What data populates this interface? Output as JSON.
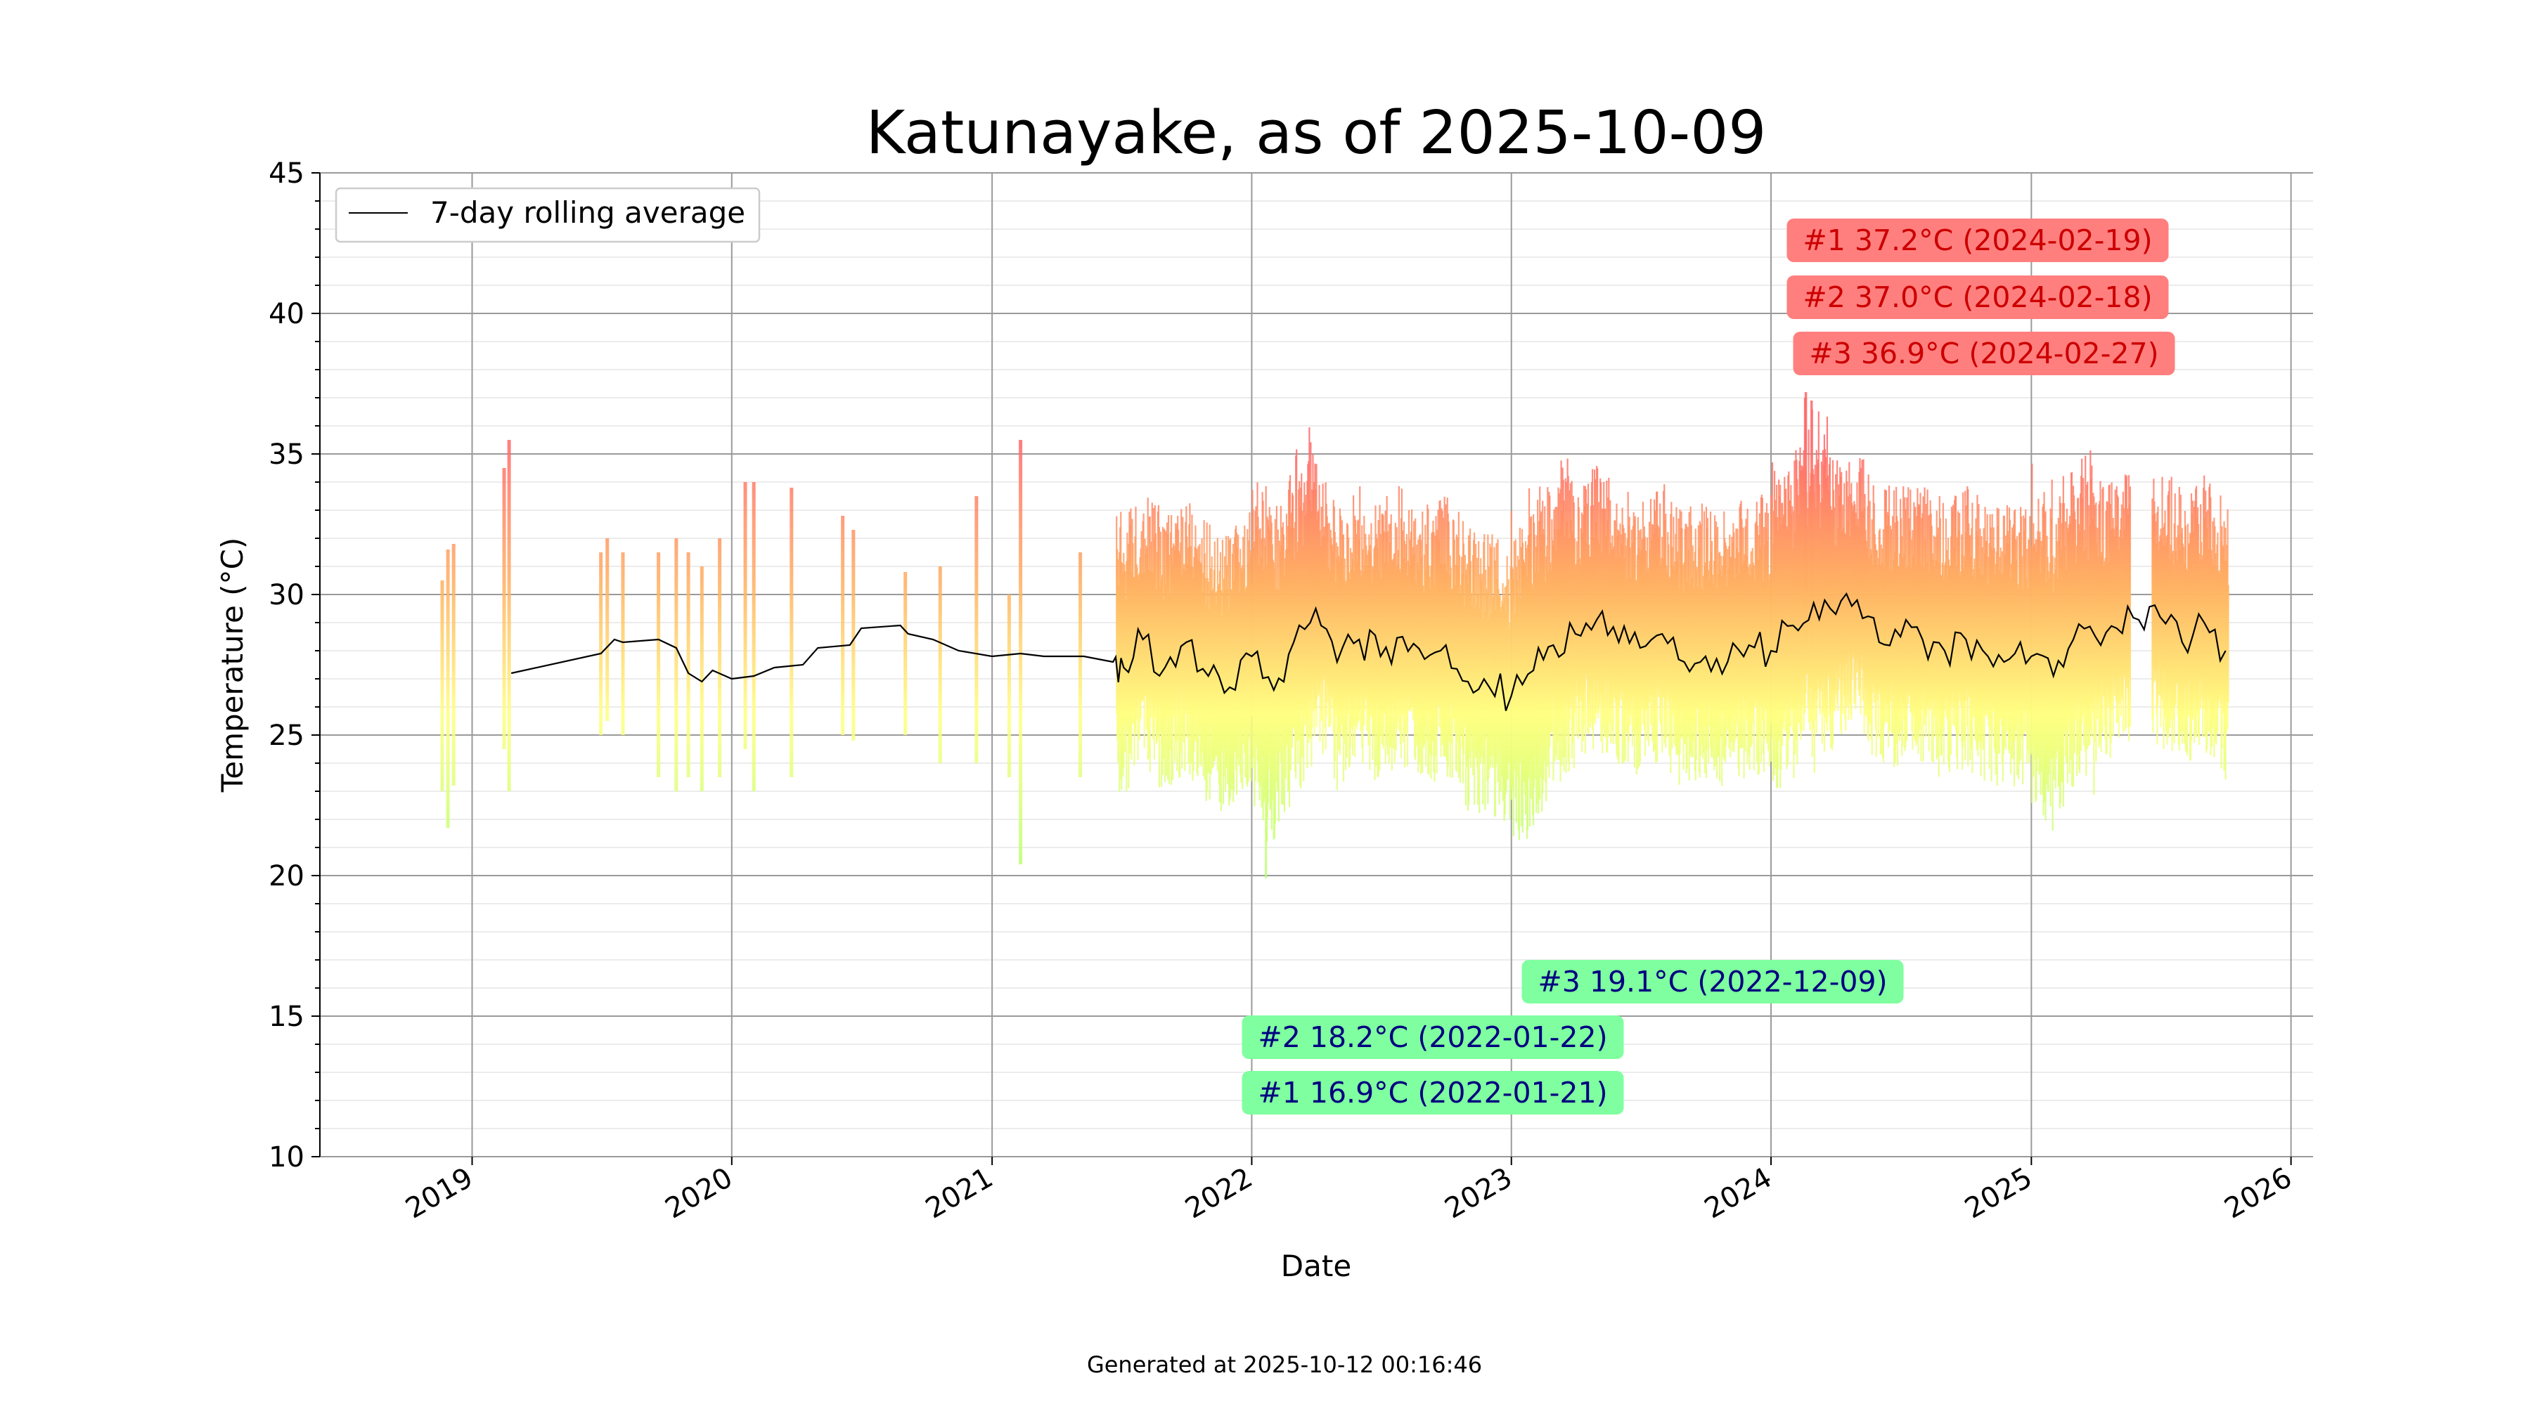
{
  "chart_data": {
    "type": "bar",
    "title": "Katunayake, as of 2025-10-09",
    "xlabel": "Date",
    "ylabel": "Temperature (°C)",
    "ylim": [
      10,
      45
    ],
    "xlim": [
      "2018-06-01",
      "2026-02-01"
    ],
    "yticks": [
      10,
      15,
      20,
      25,
      30,
      35,
      40,
      45
    ],
    "xticks": [
      "2019",
      "2020",
      "2021",
      "2022",
      "2023",
      "2024",
      "2025",
      "2026"
    ],
    "grid": true,
    "legend": {
      "placement": "top-left",
      "entries": [
        "7-day rolling average"
      ]
    },
    "colors": {
      "hot": "#ff6a6a",
      "warm": "#ffb060",
      "mild": "#ffff80",
      "cool": "#a0ff70",
      "rolling_line": "#000000",
      "max_box": "#ff7f7f",
      "max_text": "#cc0000",
      "min_box": "#7fff9f",
      "min_text": "#000080"
    },
    "records_max": [
      {
        "label": "#1 37.2°C (2024-02-19)",
        "value": 37.2,
        "date": "2024-02-19"
      },
      {
        "label": "#2 37.0°C (2024-02-18)",
        "value": 37.0,
        "date": "2024-02-18"
      },
      {
        "label": "#3 36.9°C (2024-02-27)",
        "value": 36.9,
        "date": "2024-02-27"
      }
    ],
    "records_min": [
      {
        "label": "#3 19.1°C (2022-12-09)",
        "value": 19.1,
        "date": "2022-12-09"
      },
      {
        "label": "#2 18.2°C (2022-01-22)",
        "value": 18.2,
        "date": "2022-01-22"
      },
      {
        "label": "#1 16.9°C (2022-01-21)",
        "value": 16.9,
        "date": "2022-01-21"
      }
    ],
    "daily_ranges": [
      {
        "date": "2018-11-20",
        "min": 23.0,
        "max": 30.5
      },
      {
        "date": "2018-11-28",
        "min": 21.7,
        "max": 31.6
      },
      {
        "date": "2018-12-06",
        "min": 23.2,
        "max": 31.8
      },
      {
        "date": "2019-02-15",
        "min": 24.5,
        "max": 34.5
      },
      {
        "date": "2019-02-22",
        "min": 23.0,
        "max": 35.5
      },
      {
        "date": "2019-07-01",
        "min": 25.0,
        "max": 31.5
      },
      {
        "date": "2019-07-10",
        "min": 25.5,
        "max": 32.0
      },
      {
        "date": "2019-08-01",
        "min": 25.0,
        "max": 31.5
      },
      {
        "date": "2019-09-20",
        "min": 23.5,
        "max": 31.5
      },
      {
        "date": "2019-10-15",
        "min": 23.0,
        "max": 32.0
      },
      {
        "date": "2019-11-01",
        "min": 23.5,
        "max": 31.5
      },
      {
        "date": "2019-11-20",
        "min": 23.0,
        "max": 31.0
      },
      {
        "date": "2019-12-15",
        "min": 23.5,
        "max": 32.0
      },
      {
        "date": "2020-01-20",
        "min": 24.5,
        "max": 34.0
      },
      {
        "date": "2020-02-01",
        "min": 23.0,
        "max": 34.0
      },
      {
        "date": "2020-03-25",
        "min": 23.5,
        "max": 33.8
      },
      {
        "date": "2020-06-05",
        "min": 25.0,
        "max": 32.8
      },
      {
        "date": "2020-06-20",
        "min": 24.8,
        "max": 32.3
      },
      {
        "date": "2020-09-01",
        "min": 25.0,
        "max": 30.8
      },
      {
        "date": "2020-10-20",
        "min": 24.0,
        "max": 31.0
      },
      {
        "date": "2020-12-10",
        "min": 24.0,
        "max": 33.5
      },
      {
        "date": "2021-01-25",
        "min": 23.5,
        "max": 30.0
      },
      {
        "date": "2021-02-10",
        "min": 20.4,
        "max": 35.5
      },
      {
        "date": "2021-05-05",
        "min": 23.5,
        "max": 31.5
      }
    ],
    "rolling_average_7day": [
      {
        "date": "2019-02-25",
        "value": 27.2
      },
      {
        "date": "2019-07-01",
        "value": 27.9
      },
      {
        "date": "2019-07-20",
        "value": 28.4
      },
      {
        "date": "2019-08-01",
        "value": 28.3
      },
      {
        "date": "2019-09-20",
        "value": 28.4
      },
      {
        "date": "2019-10-15",
        "value": 28.1
      },
      {
        "date": "2019-11-01",
        "value": 27.2
      },
      {
        "date": "2019-11-20",
        "value": 26.9
      },
      {
        "date": "2019-12-05",
        "value": 27.3
      },
      {
        "date": "2020-01-01",
        "value": 27.0
      },
      {
        "date": "2020-02-01",
        "value": 27.1
      },
      {
        "date": "2020-03-01",
        "value": 27.4
      },
      {
        "date": "2020-04-10",
        "value": 27.5
      },
      {
        "date": "2020-05-01",
        "value": 28.1
      },
      {
        "date": "2020-06-15",
        "value": 28.2
      },
      {
        "date": "2020-07-01",
        "value": 28.8
      },
      {
        "date": "2020-08-25",
        "value": 28.9
      },
      {
        "date": "2020-09-05",
        "value": 28.6
      },
      {
        "date": "2020-10-10",
        "value": 28.4
      },
      {
        "date": "2020-11-15",
        "value": 28.0
      },
      {
        "date": "2021-01-01",
        "value": 27.8
      },
      {
        "date": "2021-02-10",
        "value": 27.9
      },
      {
        "date": "2021-03-15",
        "value": 27.8
      },
      {
        "date": "2021-05-10",
        "value": 27.8
      },
      {
        "date": "2021-06-20",
        "value": 27.6
      },
      {
        "date": "2021-07-05",
        "value": 27.4
      },
      {
        "date": "2021-08-01",
        "value": 28.4
      },
      {
        "date": "2021-09-01",
        "value": 27.4
      },
      {
        "date": "2021-10-01",
        "value": 28.3
      },
      {
        "date": "2021-11-01",
        "value": 27.1
      },
      {
        "date": "2021-12-01",
        "value": 26.7
      },
      {
        "date": "2022-01-01",
        "value": 27.8
      },
      {
        "date": "2022-02-01",
        "value": 26.6
      },
      {
        "date": "2022-03-01",
        "value": 28.3
      },
      {
        "date": "2022-04-01",
        "value": 29.5
      },
      {
        "date": "2022-05-01",
        "value": 27.6
      },
      {
        "date": "2022-06-01",
        "value": 28.4
      },
      {
        "date": "2022-07-01",
        "value": 27.8
      },
      {
        "date": "2022-08-01",
        "value": 28.5
      },
      {
        "date": "2022-09-01",
        "value": 27.7
      },
      {
        "date": "2022-10-01",
        "value": 28.2
      },
      {
        "date": "2022-11-01",
        "value": 26.9
      },
      {
        "date": "2022-12-01",
        "value": 26.7
      },
      {
        "date": "2023-01-01",
        "value": 26.4
      },
      {
        "date": "2023-02-01",
        "value": 27.3
      },
      {
        "date": "2023-03-01",
        "value": 28.2
      },
      {
        "date": "2023-04-01",
        "value": 28.6
      },
      {
        "date": "2023-05-01",
        "value": 29.1
      },
      {
        "date": "2023-06-01",
        "value": 28.3
      },
      {
        "date": "2023-07-01",
        "value": 28.1
      },
      {
        "date": "2023-08-01",
        "value": 28.6
      },
      {
        "date": "2023-09-01",
        "value": 27.6
      },
      {
        "date": "2023-10-01",
        "value": 27.8
      },
      {
        "date": "2023-11-01",
        "value": 27.6
      },
      {
        "date": "2023-12-01",
        "value": 28.2
      },
      {
        "date": "2024-01-01",
        "value": 28.0
      },
      {
        "date": "2024-02-01",
        "value": 28.9
      },
      {
        "date": "2024-03-01",
        "value": 29.7
      },
      {
        "date": "2024-04-01",
        "value": 29.3
      },
      {
        "date": "2024-05-01",
        "value": 29.8
      },
      {
        "date": "2024-06-01",
        "value": 28.3
      },
      {
        "date": "2024-07-01",
        "value": 28.5
      },
      {
        "date": "2024-08-01",
        "value": 28.4
      },
      {
        "date": "2024-09-01",
        "value": 28.0
      },
      {
        "date": "2024-10-01",
        "value": 28.4
      },
      {
        "date": "2024-11-01",
        "value": 27.8
      },
      {
        "date": "2024-12-01",
        "value": 27.7
      },
      {
        "date": "2025-01-01",
        "value": 27.8
      },
      {
        "date": "2025-02-01",
        "value": 27.1
      },
      {
        "date": "2025-03-01",
        "value": 28.4
      },
      {
        "date": "2025-04-01",
        "value": 28.5
      },
      {
        "date": "2025-05-01",
        "value": 28.8
      },
      {
        "date": "2025-06-01",
        "value": 29.1
      },
      {
        "date": "2025-07-01",
        "value": 29.2
      },
      {
        "date": "2025-08-01",
        "value": 28.3
      },
      {
        "date": "2025-09-01",
        "value": 29.0
      },
      {
        "date": "2025-10-01",
        "value": 28.0
      }
    ]
  },
  "footer": "Generated at 2025-10-12 00:16:46"
}
